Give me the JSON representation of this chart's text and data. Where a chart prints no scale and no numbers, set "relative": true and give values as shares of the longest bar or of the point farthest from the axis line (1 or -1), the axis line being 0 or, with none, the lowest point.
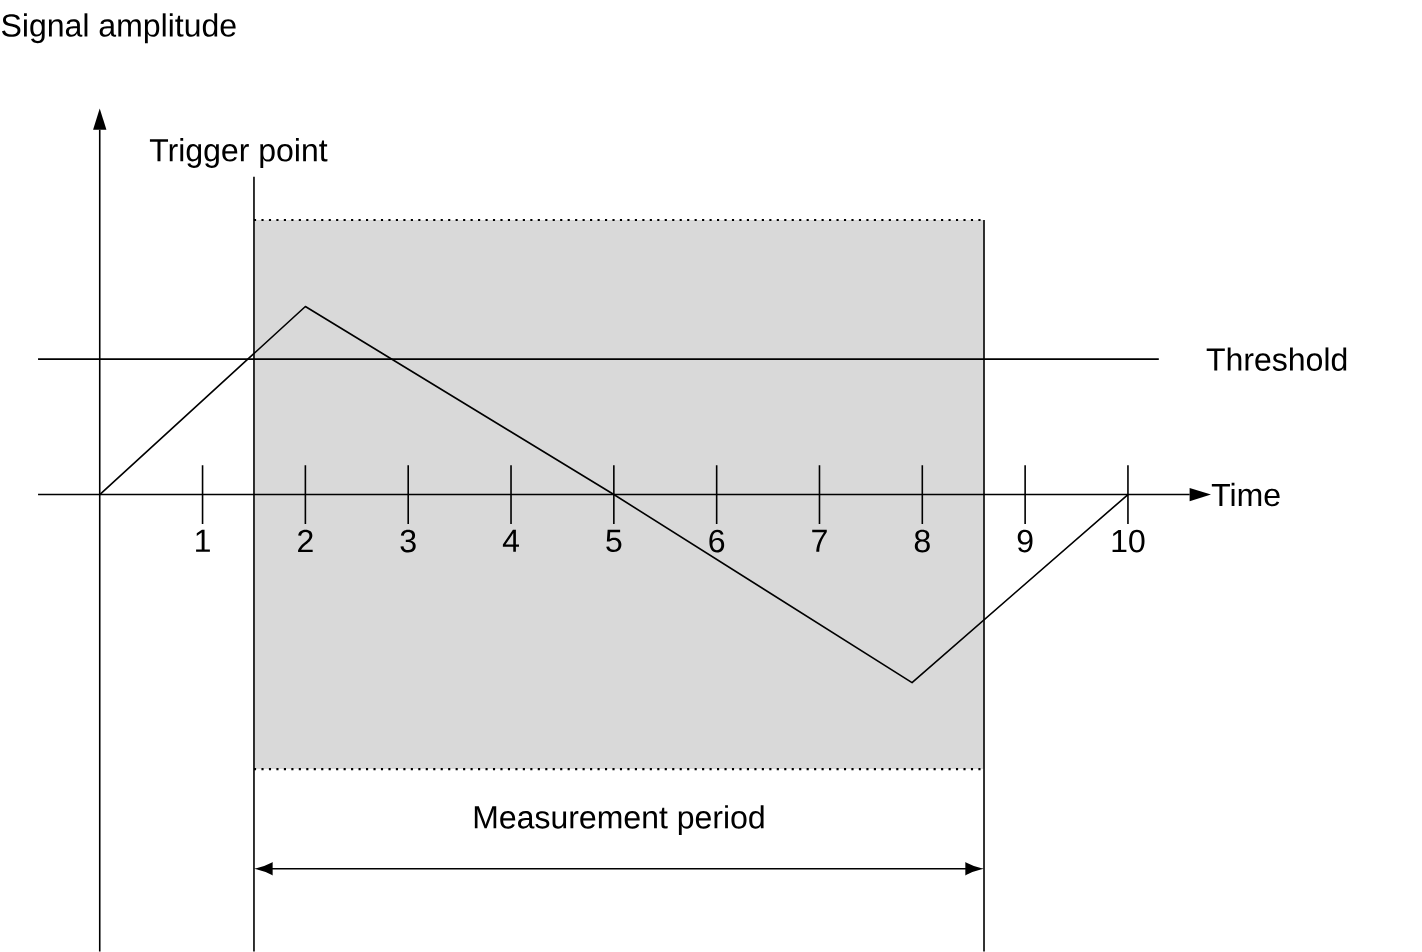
{
  "chart_data": {
    "type": "line",
    "relative": true,
    "xlabel": "Time",
    "annotations": [
      "Signal amplitude"
    ],
    "x": [
      0,
      2,
      5,
      7.9,
      10
    ],
    "series": [
      {
        "color": "#000000",
        "values": [
          0,
          1,
          0,
          -1,
          0
        ]
      }
    ],
    "xlim": [
      -0.6,
      10.6
    ],
    "xticks": [
      1,
      2,
      3,
      4,
      5,
      6,
      7,
      8,
      9,
      10
    ],
    "marker": "none",
    "grid": false,
    "ref_lines": [
      {
        "axis": "x",
        "value": 1.5,
        "label": "Trigger point"
      },
      {
        "axis": "y",
        "value": 0.72,
        "label": "Threshold"
      }
    ],
    "bands": [
      {
        "axis": "x",
        "from": 1.5,
        "to": 8.6,
        "label": "Measurement period",
        "color": "#d9d9d9"
      }
    ]
  }
}
